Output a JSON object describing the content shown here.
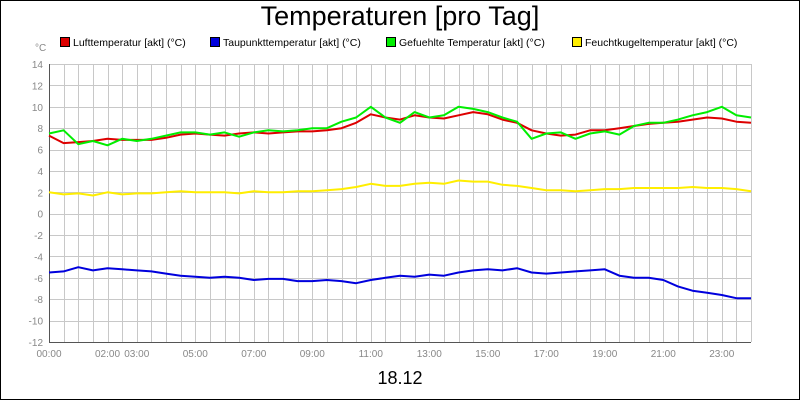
{
  "chart_data": {
    "type": "line",
    "title": "Temperaturen [pro Tag]",
    "xlabel": "18.12",
    "ylabel": "°C",
    "ylim": [
      -12,
      14
    ],
    "yticks": [
      14,
      12,
      10,
      8,
      6,
      4,
      2,
      0,
      -2,
      -4,
      -6,
      -8,
      -10,
      -12
    ],
    "xlim": [
      0,
      24
    ],
    "xticks": [
      {
        "label": "00:00",
        "x": 0
      },
      {
        "label": "02:00",
        "x": 2
      },
      {
        "label": "03:00",
        "x": 3
      },
      {
        "label": "05:00",
        "x": 5
      },
      {
        "label": "07:00",
        "x": 7
      },
      {
        "label": "09:00",
        "x": 9
      },
      {
        "label": "11:00",
        "x": 11
      },
      {
        "label": "13:00",
        "x": 13
      },
      {
        "label": "15:00",
        "x": 15
      },
      {
        "label": "17:00",
        "x": 17
      },
      {
        "label": "19:00",
        "x": 19
      },
      {
        "label": "21:00",
        "x": 21
      },
      {
        "label": "23:00",
        "x": 23
      }
    ],
    "grid": true,
    "legend_position": "top",
    "series": [
      {
        "name": "Lufttemperatur [akt] (°C)",
        "color": "#dd0000",
        "x": [
          0,
          0.5,
          1,
          1.5,
          2,
          2.5,
          3,
          3.5,
          4,
          4.5,
          5,
          5.5,
          6,
          6.5,
          7,
          7.5,
          8,
          8.5,
          9,
          9.5,
          10,
          10.5,
          11,
          11.5,
          12,
          12.5,
          13,
          13.5,
          14,
          14.5,
          15,
          15.5,
          16,
          16.5,
          17,
          17.5,
          18,
          18.5,
          19,
          19.5,
          20,
          20.5,
          21,
          21.5,
          22,
          22.5,
          23,
          23.5,
          24
        ],
        "values": [
          7.3,
          6.6,
          6.7,
          6.8,
          7.0,
          6.9,
          6.9,
          6.9,
          7.1,
          7.4,
          7.5,
          7.4,
          7.3,
          7.5,
          7.6,
          7.5,
          7.6,
          7.7,
          7.7,
          7.8,
          8.0,
          8.5,
          9.3,
          9.0,
          8.8,
          9.2,
          9.0,
          8.9,
          9.2,
          9.5,
          9.3,
          8.8,
          8.5,
          7.8,
          7.5,
          7.3,
          7.4,
          7.8,
          7.8,
          8.0,
          8.2,
          8.4,
          8.5,
          8.6,
          8.8,
          9.0,
          8.9,
          8.6,
          8.5
        ]
      },
      {
        "name": "Taupunkttemperatur [akt] (°C)",
        "color": "#0000dd",
        "x": [
          0,
          0.5,
          1,
          1.5,
          2,
          2.5,
          3,
          3.5,
          4,
          4.5,
          5,
          5.5,
          6,
          6.5,
          7,
          7.5,
          8,
          8.5,
          9,
          9.5,
          10,
          10.5,
          11,
          11.5,
          12,
          12.5,
          13,
          13.5,
          14,
          14.5,
          15,
          15.5,
          16,
          16.5,
          17,
          17.5,
          18,
          18.5,
          19,
          19.5,
          20,
          20.5,
          21,
          21.5,
          22,
          22.5,
          23,
          23.5,
          24
        ],
        "values": [
          -5.5,
          -5.4,
          -5.0,
          -5.3,
          -5.1,
          -5.2,
          -5.3,
          -5.4,
          -5.6,
          -5.8,
          -5.9,
          -6.0,
          -5.9,
          -6.0,
          -6.2,
          -6.1,
          -6.1,
          -6.3,
          -6.3,
          -6.2,
          -6.3,
          -6.5,
          -6.2,
          -6.0,
          -5.8,
          -5.9,
          -5.7,
          -5.8,
          -5.5,
          -5.3,
          -5.2,
          -5.3,
          -5.1,
          -5.5,
          -5.6,
          -5.5,
          -5.4,
          -5.3,
          -5.2,
          -5.8,
          -6.0,
          -6.0,
          -6.2,
          -6.8,
          -7.2,
          -7.4,
          -7.6,
          -7.9,
          -7.9
        ]
      },
      {
        "name": "Gefuehlte Temperatur [akt] (°C)",
        "color": "#00ee00",
        "x": [
          0,
          0.5,
          1,
          1.5,
          2,
          2.5,
          3,
          3.5,
          4,
          4.5,
          5,
          5.5,
          6,
          6.5,
          7,
          7.5,
          8,
          8.5,
          9,
          9.5,
          10,
          10.5,
          11,
          11.5,
          12,
          12.5,
          13,
          13.5,
          14,
          14.5,
          15,
          15.5,
          16,
          16.5,
          17,
          17.5,
          18,
          18.5,
          19,
          19.5,
          20,
          20.5,
          21,
          21.5,
          22,
          22.5,
          23,
          23.5,
          24
        ],
        "values": [
          7.5,
          7.8,
          6.5,
          6.8,
          6.4,
          7.0,
          6.8,
          7.0,
          7.3,
          7.6,
          7.6,
          7.4,
          7.6,
          7.2,
          7.6,
          7.8,
          7.7,
          7.8,
          8.0,
          8.0,
          8.6,
          9.0,
          10.0,
          9.0,
          8.5,
          9.5,
          9.0,
          9.2,
          10.0,
          9.8,
          9.5,
          9.0,
          8.6,
          7.0,
          7.5,
          7.6,
          7.0,
          7.5,
          7.7,
          7.4,
          8.2,
          8.5,
          8.5,
          8.8,
          9.2,
          9.5,
          10.0,
          9.2,
          9.0
        ]
      },
      {
        "name": "Feuchtkugeltemperatur [akt] (°C)",
        "color": "#ffee00",
        "x": [
          0,
          0.5,
          1,
          1.5,
          2,
          2.5,
          3,
          3.5,
          4,
          4.5,
          5,
          5.5,
          6,
          6.5,
          7,
          7.5,
          8,
          8.5,
          9,
          9.5,
          10,
          10.5,
          11,
          11.5,
          12,
          12.5,
          13,
          13.5,
          14,
          14.5,
          15,
          15.5,
          16,
          16.5,
          17,
          17.5,
          18,
          18.5,
          19,
          19.5,
          20,
          20.5,
          21,
          21.5,
          22,
          22.5,
          23,
          23.5,
          24
        ],
        "values": [
          2.0,
          1.8,
          1.9,
          1.7,
          2.0,
          1.8,
          1.9,
          1.9,
          2.0,
          2.1,
          2.0,
          2.0,
          2.0,
          1.9,
          2.1,
          2.0,
          2.0,
          2.1,
          2.1,
          2.2,
          2.3,
          2.5,
          2.8,
          2.6,
          2.6,
          2.8,
          2.9,
          2.8,
          3.1,
          3.0,
          3.0,
          2.7,
          2.6,
          2.4,
          2.2,
          2.2,
          2.1,
          2.2,
          2.3,
          2.3,
          2.4,
          2.4,
          2.4,
          2.4,
          2.5,
          2.4,
          2.4,
          2.3,
          2.1
        ]
      }
    ]
  }
}
